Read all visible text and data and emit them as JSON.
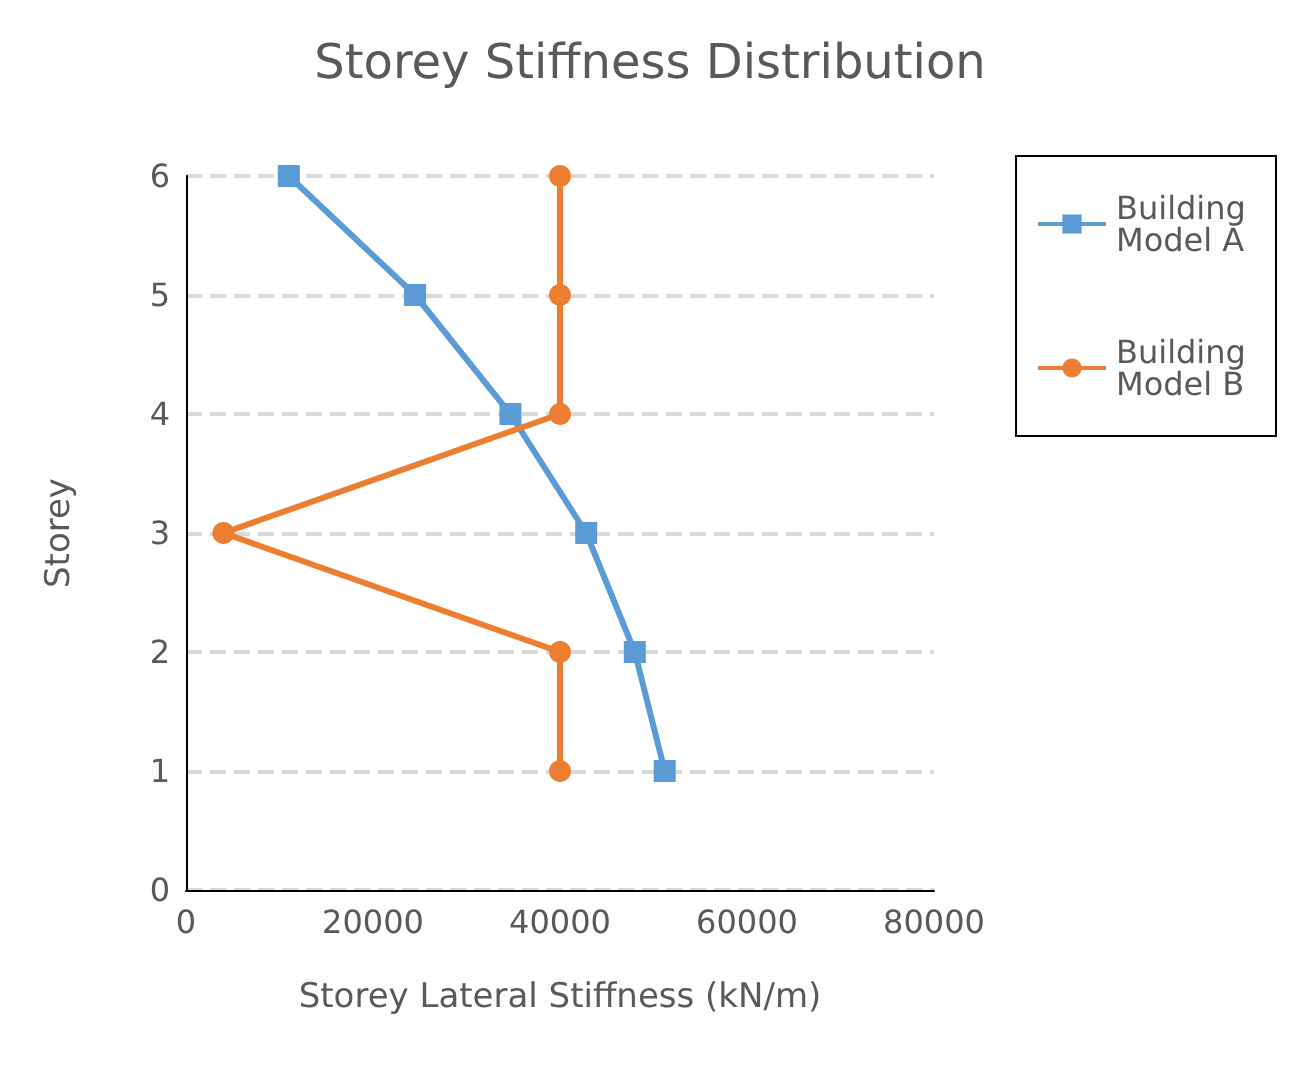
{
  "chart_data": {
    "type": "line",
    "title": "Storey Stiffness Distribution",
    "xlabel": "Storey Lateral Stiffness (kN/m)",
    "ylabel": "Storey",
    "xlim": [
      0,
      80000
    ],
    "xticks": [
      0,
      20000,
      40000,
      60000,
      80000
    ],
    "ylim": [
      0,
      6
    ],
    "yticks": [
      0,
      1,
      2,
      3,
      4,
      5,
      6
    ],
    "grid": "y",
    "legend": "right",
    "series": [
      {
        "name": "Building Model A",
        "color": "#5b9bd5",
        "marker": "square",
        "x": [
          51200,
          48000,
          42800,
          34700,
          24500,
          11000
        ],
        "values": [
          1,
          2,
          3,
          4,
          5,
          6
        ]
      },
      {
        "name": "Building Model B",
        "color": "#ed7d31",
        "marker": "circle",
        "x": [
          40000,
          40000,
          4000,
          40000,
          40000,
          40000
        ],
        "values": [
          1,
          2,
          3,
          4,
          5,
          6
        ]
      }
    ]
  }
}
